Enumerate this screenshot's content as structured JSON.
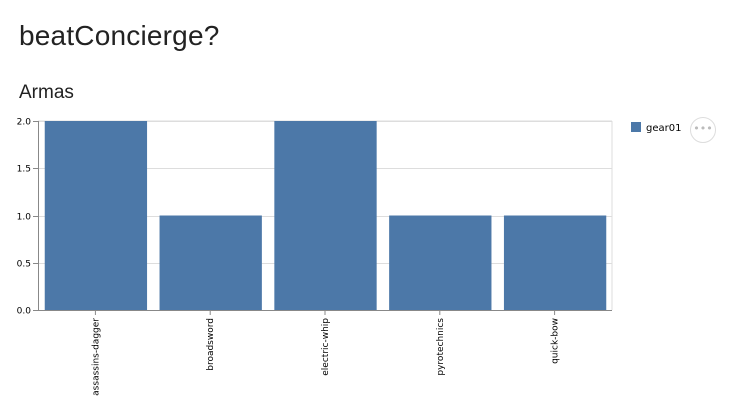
{
  "page": {
    "title": "beatConcierge?"
  },
  "section": {
    "title": "Armas"
  },
  "menu": {
    "icon": "ellipsis-icon",
    "glyph": "•••"
  },
  "chart_data": {
    "type": "bar",
    "title": "",
    "xlabel": "",
    "ylabel": "",
    "categories": [
      "assassins-dagger",
      "broadsword",
      "electric-whip",
      "pyrotechnics",
      "quick-bow"
    ],
    "series": [
      {
        "name": "gear01",
        "values": [
          2,
          1,
          2,
          1,
          1
        ],
        "color": "#4c78a8"
      }
    ],
    "ylim": [
      0,
      2
    ],
    "yticks": [
      "0.0",
      "0.5",
      "1.0",
      "1.5",
      "2.0"
    ],
    "grid": true,
    "legend": "right"
  }
}
